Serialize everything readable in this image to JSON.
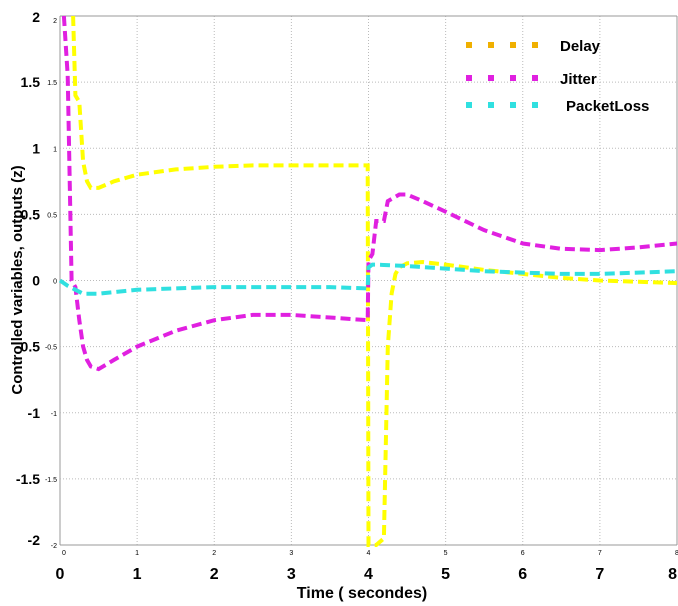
{
  "chart_data": {
    "type": "line",
    "title": "",
    "xlabel": "Time ( secondes)",
    "ylabel": "Controlled variables, outputs (z)",
    "xlim": [
      0,
      8
    ],
    "ylim": [
      -2,
      2
    ],
    "x_ticks": [
      "0",
      "1",
      "2",
      "3",
      "4",
      "5",
      "6",
      "7",
      "8"
    ],
    "y_ticks": [
      "2",
      "1.5",
      "1",
      "0.5",
      "0",
      "-0.5",
      "-1",
      "-1.5",
      "-2"
    ],
    "grid": true,
    "legend_position": "top-right",
    "series": [
      {
        "name": "Delay",
        "color": "#ffff00",
        "legend_color": "#f0b000",
        "points": [
          [
            0.17,
            2.0
          ],
          [
            0.2,
            1.4
          ],
          [
            0.25,
            1.35
          ],
          [
            0.3,
            0.9
          ],
          [
            0.35,
            0.75
          ],
          [
            0.4,
            0.7
          ],
          [
            0.5,
            0.7
          ],
          [
            0.7,
            0.75
          ],
          [
            1.0,
            0.8
          ],
          [
            1.5,
            0.84
          ],
          [
            2.0,
            0.86
          ],
          [
            2.5,
            0.87
          ],
          [
            3.0,
            0.87
          ],
          [
            3.5,
            0.87
          ],
          [
            3.99,
            0.87
          ],
          [
            4.0,
            -2.0
          ],
          [
            4.1,
            -2.0
          ],
          [
            4.2,
            -1.95
          ],
          [
            4.25,
            -0.5
          ],
          [
            4.3,
            -0.1
          ],
          [
            4.35,
            0.05
          ],
          [
            4.4,
            0.1
          ],
          [
            4.5,
            0.13
          ],
          [
            4.7,
            0.14
          ],
          [
            5.0,
            0.12
          ],
          [
            5.5,
            0.08
          ],
          [
            6.0,
            0.05
          ],
          [
            6.5,
            0.02
          ],
          [
            7.0,
            0.0
          ],
          [
            7.5,
            -0.01
          ],
          [
            8.0,
            -0.02
          ]
        ]
      },
      {
        "name": "Jitter",
        "color": "#e020e0",
        "legend_color": "#e020e0",
        "points": [
          [
            0.05,
            2.0
          ],
          [
            0.1,
            1.55
          ],
          [
            0.15,
            0.0
          ],
          [
            0.2,
            -0.05
          ],
          [
            0.25,
            -0.3
          ],
          [
            0.3,
            -0.5
          ],
          [
            0.35,
            -0.6
          ],
          [
            0.4,
            -0.65
          ],
          [
            0.5,
            -0.67
          ],
          [
            0.7,
            -0.6
          ],
          [
            1.0,
            -0.5
          ],
          [
            1.5,
            -0.38
          ],
          [
            2.0,
            -0.3
          ],
          [
            2.5,
            -0.26
          ],
          [
            3.0,
            -0.26
          ],
          [
            3.5,
            -0.28
          ],
          [
            3.99,
            -0.3
          ],
          [
            4.0,
            0.15
          ],
          [
            4.05,
            0.2
          ],
          [
            4.1,
            0.45
          ],
          [
            4.2,
            0.45
          ],
          [
            4.25,
            0.6
          ],
          [
            4.4,
            0.65
          ],
          [
            4.5,
            0.65
          ],
          [
            4.7,
            0.6
          ],
          [
            5.0,
            0.52
          ],
          [
            5.5,
            0.38
          ],
          [
            6.0,
            0.28
          ],
          [
            6.5,
            0.24
          ],
          [
            7.0,
            0.23
          ],
          [
            7.5,
            0.25
          ],
          [
            8.0,
            0.28
          ]
        ]
      },
      {
        "name": "PacketLoss",
        "color": "#30e0e0",
        "legend_color": "#30e0e0",
        "points": [
          [
            0.0,
            0.0
          ],
          [
            0.1,
            -0.04
          ],
          [
            0.2,
            -0.07
          ],
          [
            0.3,
            -0.1
          ],
          [
            0.4,
            -0.1
          ],
          [
            0.5,
            -0.1
          ],
          [
            1.0,
            -0.07
          ],
          [
            1.5,
            -0.06
          ],
          [
            2.0,
            -0.05
          ],
          [
            2.5,
            -0.05
          ],
          [
            3.0,
            -0.05
          ],
          [
            3.5,
            -0.05
          ],
          [
            3.99,
            -0.06
          ],
          [
            4.0,
            0.1
          ],
          [
            4.05,
            0.12
          ],
          [
            4.1,
            0.12
          ],
          [
            4.5,
            0.11
          ],
          [
            5.0,
            0.09
          ],
          [
            5.5,
            0.07
          ],
          [
            6.0,
            0.06
          ],
          [
            6.5,
            0.05
          ],
          [
            7.0,
            0.05
          ],
          [
            7.5,
            0.06
          ],
          [
            8.0,
            0.07
          ]
        ]
      }
    ]
  }
}
